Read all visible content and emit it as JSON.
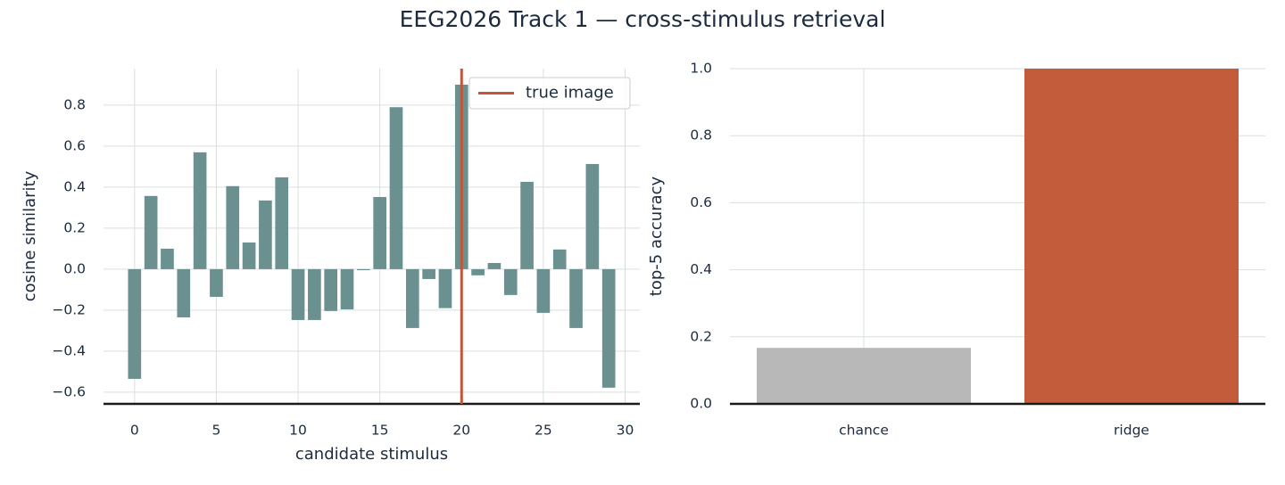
{
  "title": "EEG2026 Track 1 — cross-stimulus retrieval",
  "chart_data": [
    {
      "type": "bar",
      "xlabel": "candidate stimulus",
      "ylabel": "cosine similarity",
      "x": [
        0,
        1,
        2,
        3,
        4,
        5,
        6,
        7,
        8,
        9,
        10,
        11,
        12,
        13,
        14,
        15,
        16,
        17,
        18,
        19,
        20,
        21,
        22,
        23,
        24,
        25,
        26,
        27,
        28,
        29
      ],
      "values": [
        -0.535,
        0.357,
        0.1,
        -0.235,
        0.57,
        -0.135,
        0.405,
        0.13,
        0.335,
        0.448,
        -0.248,
        -0.248,
        -0.204,
        -0.196,
        -0.005,
        0.352,
        0.79,
        -0.287,
        -0.048,
        -0.19,
        0.9,
        -0.03,
        0.03,
        -0.126,
        0.426,
        -0.213,
        0.096,
        -0.287,
        0.513,
        -0.578
      ],
      "color": "#6a9190",
      "xlim": [
        -1.9,
        30.9
      ],
      "ylim": [
        -0.657,
        0.978
      ],
      "xticks": [
        0,
        5,
        10,
        15,
        20,
        25,
        30
      ],
      "yticks": [
        {
          "value": -0.6,
          "label": "−0.6"
        },
        {
          "value": -0.4,
          "label": "−0.4"
        },
        {
          "value": -0.2,
          "label": "−0.2"
        },
        {
          "value": 0,
          "label": "0.0"
        },
        0.2,
        0.4,
        0.6,
        0.8
      ],
      "grid": true,
      "vline": {
        "x": 20,
        "name": "true image",
        "color": "#c0573a"
      },
      "legend": "upper right"
    },
    {
      "type": "bar",
      "ylabel": "top-5 accuracy",
      "categories": [
        "chance",
        "ridge"
      ],
      "values": [
        0.167,
        1.0
      ],
      "colors": [
        "#b8b8b8",
        "#c25c3b"
      ],
      "ylim": [
        0,
        1
      ],
      "yticks": [
        {
          "value": 0,
          "label": "0.0"
        },
        0.2,
        0.4,
        0.6,
        0.8,
        {
          "value": 1,
          "label": "1.0"
        }
      ],
      "grid": true
    }
  ]
}
